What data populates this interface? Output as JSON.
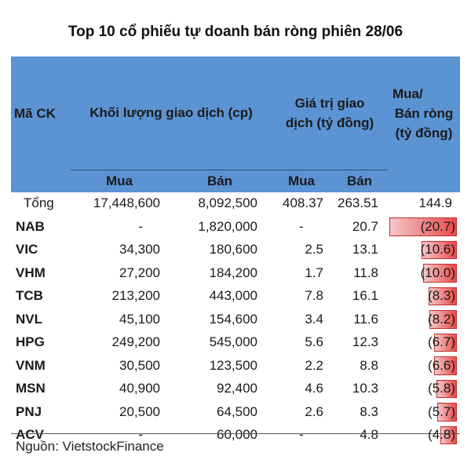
{
  "title": "Top 10 cổ phiếu tự doanh bán ròng phiên 28/06",
  "headers": {
    "code": "Mã CK",
    "volume": "Khối lượng giao dịch (cp)",
    "value_line1": "Giá trị giao",
    "value_line2": "dịch (tỷ đồng)",
    "net_line1": "Mua/",
    "net_line2": "Bán ròng",
    "net_line3": "(tỷ đồng)",
    "buy": "Mua",
    "sell": "Bán",
    "value_buy": "Mua",
    "value_sell": "Bán"
  },
  "total": {
    "code": "Tổng",
    "vol_buy": "17,448,600",
    "vol_sell": "8,092,500",
    "val_buy": "408.37",
    "val_sell": "263.51",
    "net": "144.9"
  },
  "rows": [
    {
      "code": "NAB",
      "vol_buy": "-",
      "vol_sell": "1,820,000",
      "val_buy": "-",
      "val_sell": "20.7",
      "net": "(20.7)",
      "net_value": -20.7
    },
    {
      "code": "VIC",
      "vol_buy": "34,300",
      "vol_sell": "180,600",
      "val_buy": "2.5",
      "val_sell": "13.1",
      "net": "(10.6)",
      "net_value": -10.6
    },
    {
      "code": "VHM",
      "vol_buy": "27,200",
      "vol_sell": "184,200",
      "val_buy": "1.7",
      "val_sell": "11.8",
      "net": "(10.0)",
      "net_value": -10.0
    },
    {
      "code": "TCB",
      "vol_buy": "213,200",
      "vol_sell": "443,000",
      "val_buy": "7.8",
      "val_sell": "16.1",
      "net": "(8.3)",
      "net_value": -8.3
    },
    {
      "code": "NVL",
      "vol_buy": "45,100",
      "vol_sell": "154,600",
      "val_buy": "3.4",
      "val_sell": "11.6",
      "net": "(8.2)",
      "net_value": -8.2
    },
    {
      "code": "HPG",
      "vol_buy": "249,200",
      "vol_sell": "545,000",
      "val_buy": "5.6",
      "val_sell": "12.3",
      "net": "(6.7)",
      "net_value": -6.7
    },
    {
      "code": "VNM",
      "vol_buy": "30,500",
      "vol_sell": "123,500",
      "val_buy": "2.2",
      "val_sell": "8.8",
      "net": "(6.6)",
      "net_value": -6.6
    },
    {
      "code": "MSN",
      "vol_buy": "40,900",
      "vol_sell": "92,400",
      "val_buy": "4.6",
      "val_sell": "10.3",
      "net": "(5.8)",
      "net_value": -5.8
    },
    {
      "code": "PNJ",
      "vol_buy": "20,500",
      "vol_sell": "64,500",
      "val_buy": "2.6",
      "val_sell": "8.3",
      "net": "(5.7)",
      "net_value": -5.7
    },
    {
      "code": "ACV",
      "vol_buy": "-",
      "vol_sell": "60,000",
      "val_buy": "-",
      "val_sell": "4.8",
      "net": "(4.8)",
      "net_value": -4.8
    }
  ],
  "source": "Nguồn: VietstockFinance",
  "colors": {
    "header_bg": "#5b93d3",
    "bar_dark": "#e84a4a",
    "bar_light": "#f6c7c7"
  }
}
